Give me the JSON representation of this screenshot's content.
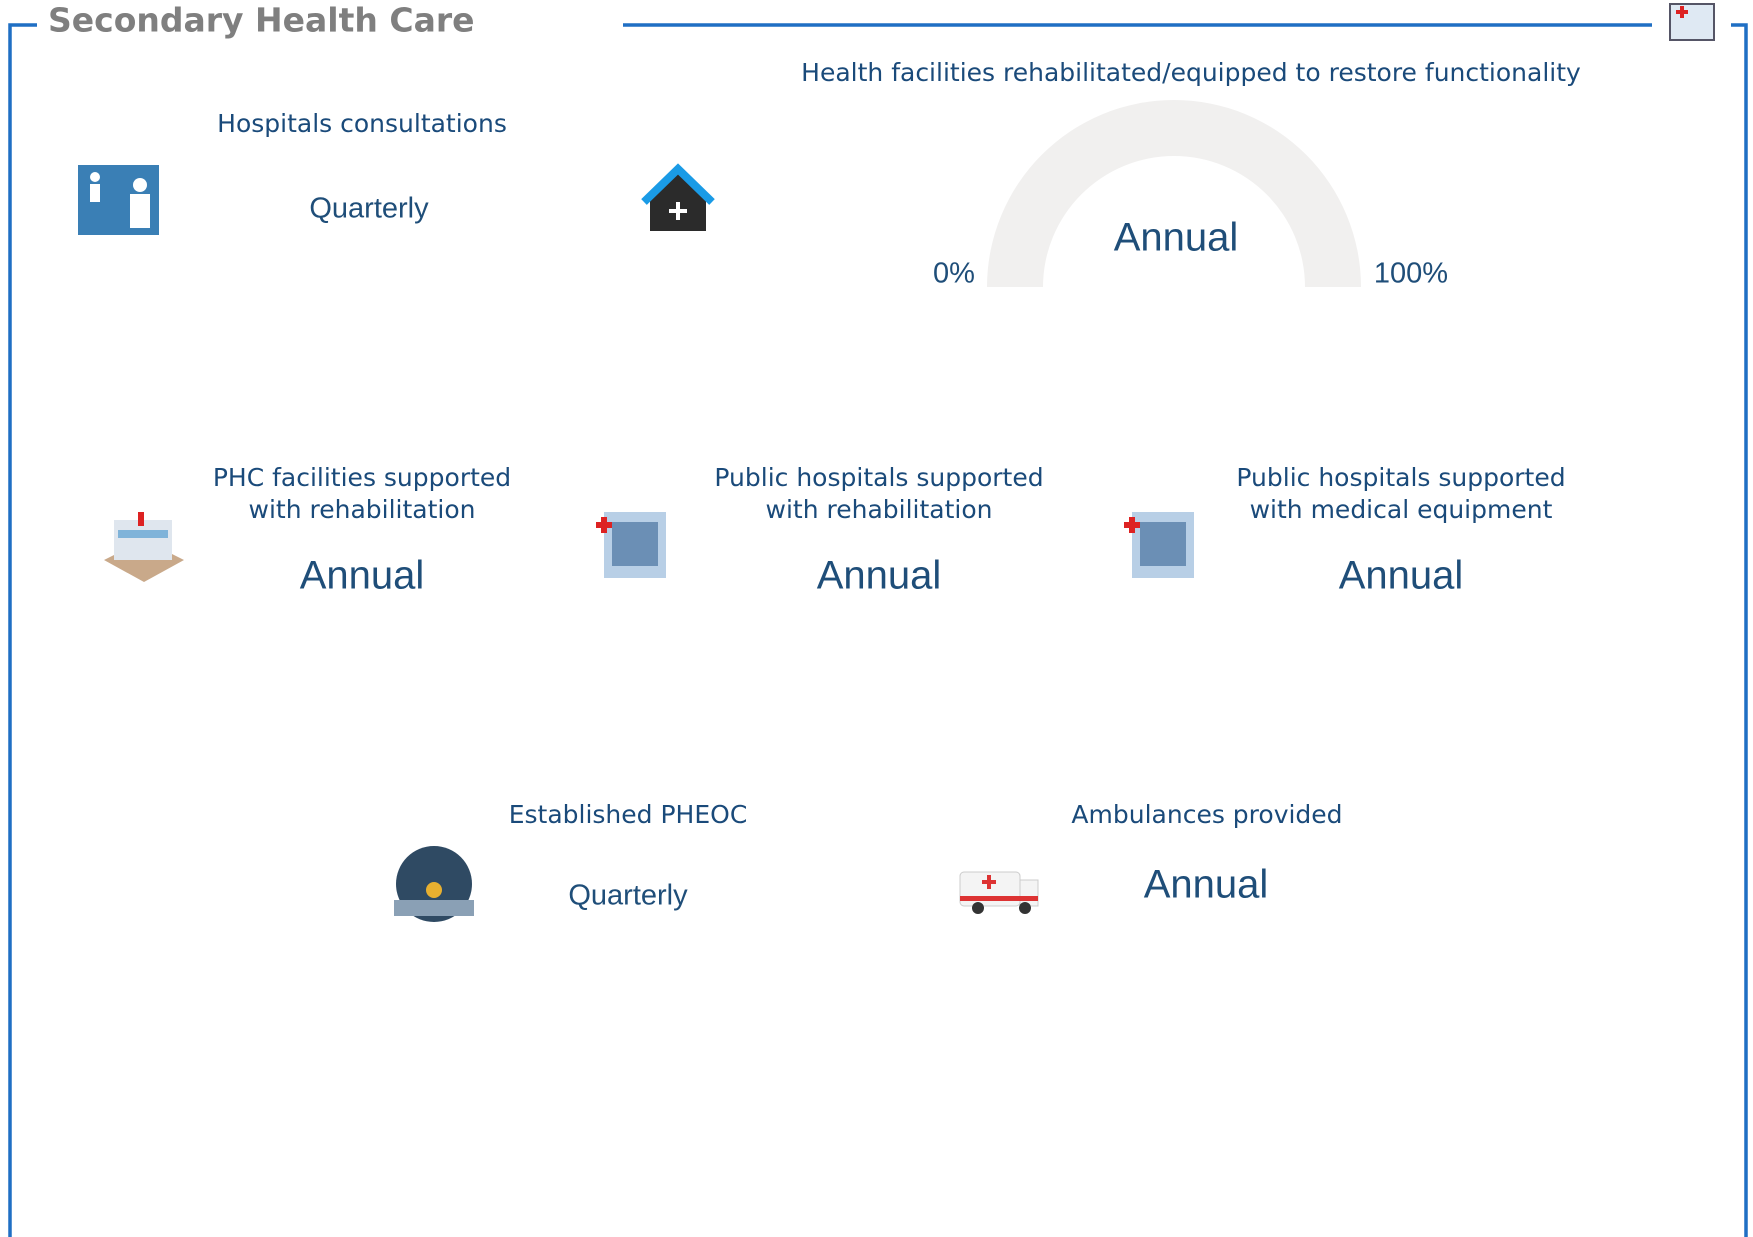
{
  "header": {
    "title": "Secondary Health Care"
  },
  "gauge": {
    "title": "Health facilities rehabilitated/equipped to restore functionality",
    "value": "Annual",
    "min_label": "0%",
    "max_label": "100%"
  },
  "cards": [
    {
      "title": [
        "Hospitals consultations"
      ],
      "value": "Quarterly"
    },
    {
      "title": [
        "PHC facilities supported",
        "with rehabilitation"
      ],
      "value": "Annual"
    },
    {
      "title": [
        "Public hospitals supported",
        "with rehabilitation"
      ],
      "value": "Annual"
    },
    {
      "title": [
        "Public hospitals supported",
        "with medical equipment"
      ],
      "value": "Annual"
    },
    {
      "title": [
        "Established PHEOC"
      ],
      "value": "Quarterly"
    },
    {
      "title": [
        "Ambulances provided"
      ],
      "value": "Annual"
    }
  ]
}
